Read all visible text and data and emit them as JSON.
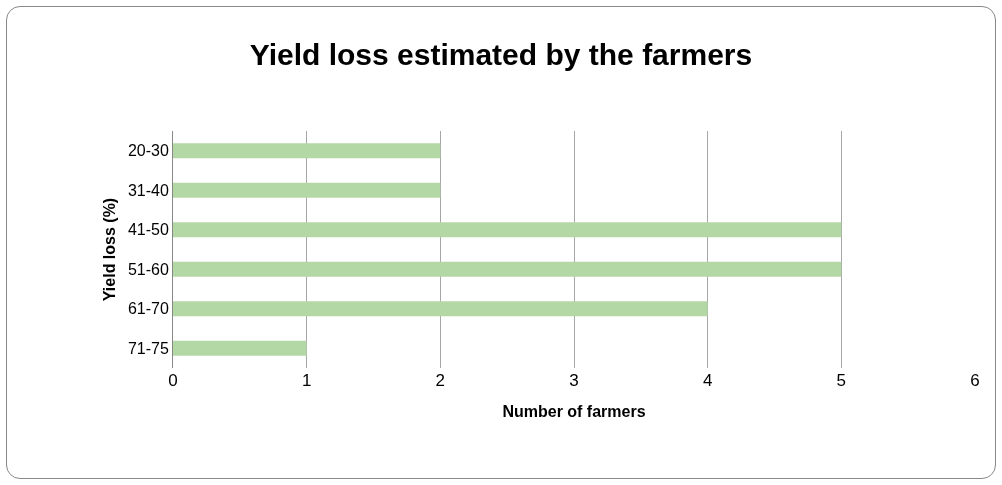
{
  "chart_data": {
    "type": "bar",
    "orientation": "horizontal",
    "title": "Yield loss estimated by the farmers",
    "xlabel": "Number of farmers",
    "ylabel": "Yield loss (%)",
    "categories": [
      "20-30",
      "31-40",
      "41-50",
      "51-60",
      "61-70",
      "71-75"
    ],
    "values": [
      2,
      2,
      5,
      5,
      4,
      1
    ],
    "color": "#b3d7a5",
    "xlim": [
      0,
      6
    ],
    "xticks": [
      0,
      1,
      2,
      3,
      4,
      5,
      6
    ],
    "grid": "x"
  }
}
